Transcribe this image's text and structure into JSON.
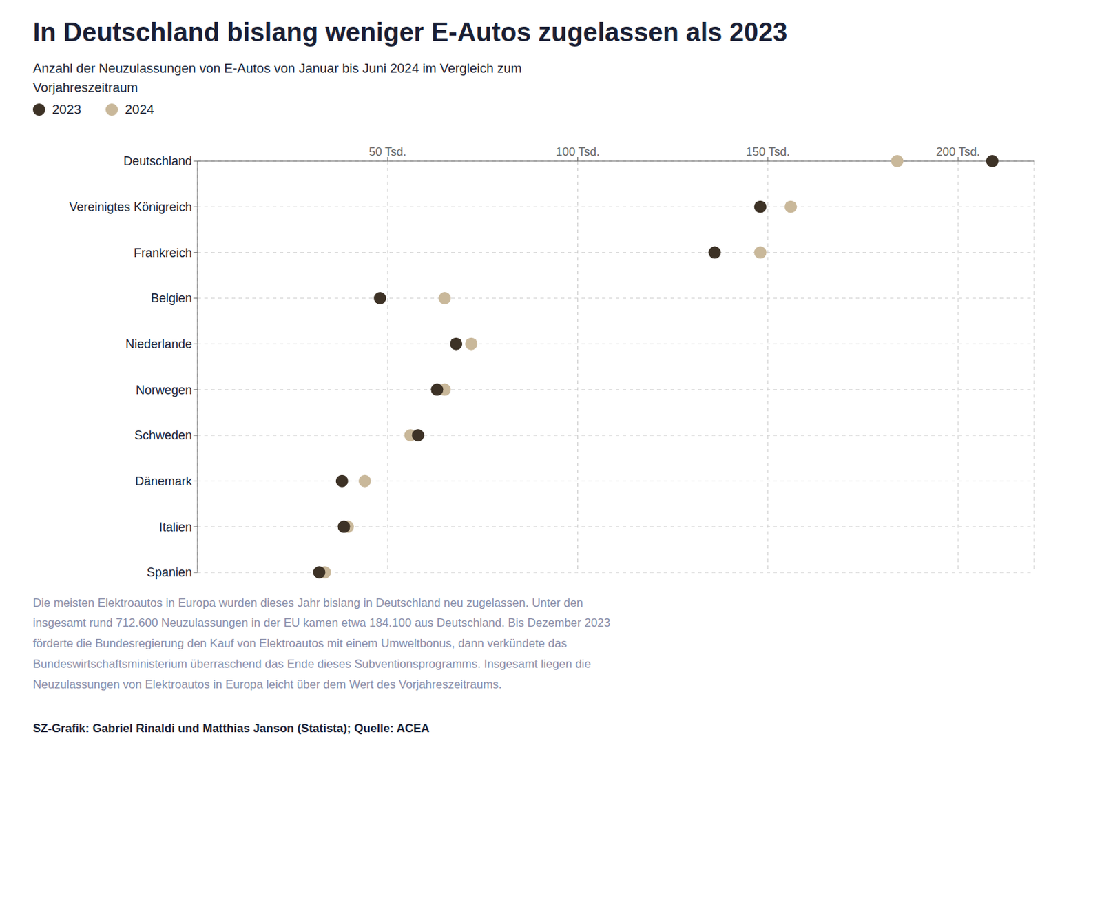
{
  "chart_data": {
    "type": "dot",
    "orientation": "horizontal",
    "title": "In Deutschland bislang weniger E-Autos zugelassen als 2023",
    "subtitle": "Anzahl der Neuzulassungen von E-Autos von Januar bis Juni 2024 im Vergleich zum\nVorjahreszeitraum",
    "categories": [
      "Deutschland",
      "Vereinigtes Königreich",
      "Frankreich",
      "Belgien",
      "Niederlande",
      "Norwegen",
      "Schweden",
      "Dänemark",
      "Italien",
      "Spanien"
    ],
    "series": [
      {
        "name": "2023",
        "color": "#3d3226",
        "values": [
          209000,
          148000,
          136000,
          48000,
          68000,
          63000,
          58000,
          38000,
          38500,
          32000
        ]
      },
      {
        "name": "2024",
        "color": "#c9b89a",
        "values": [
          184000,
          156000,
          148000,
          65000,
          72000,
          65000,
          56000,
          44000,
          39500,
          33500
        ]
      }
    ],
    "xlim": [
      0,
      220000
    ],
    "xticks": [
      {
        "value": 50000,
        "label": "50 Tsd."
      },
      {
        "value": 100000,
        "label": "100 Tsd."
      },
      {
        "value": 150000,
        "label": "150 Tsd."
      },
      {
        "value": 200000,
        "label": "200 Tsd."
      }
    ],
    "grid": true,
    "legend": "top",
    "annotations": [
      "Die meisten Elektroautos in Europa wurden dieses Jahr bislang in Deutschland neu zugelassen. Unter den\ninsgesamt rund 712.600 Neuzulassungen in der EU kamen etwa 184.100 aus Deutschland. Bis Dezember 2023\nförderte die Bundesregierung den Kauf von Elektroautos mit einem Umweltbonus, dann verkündete das\nBundeswirtschaftsministerium überraschend das Ende dieses Subventionsprogramms. Insgesamt liegen die\nNeuzulassungen von Elektroautos in Europa leicht über dem Wert des Vorjahreszeitraums.",
      "SZ-Grafik: Gabriel Rinaldi und Matthias Janson (Statista); Quelle: ACEA"
    ]
  }
}
